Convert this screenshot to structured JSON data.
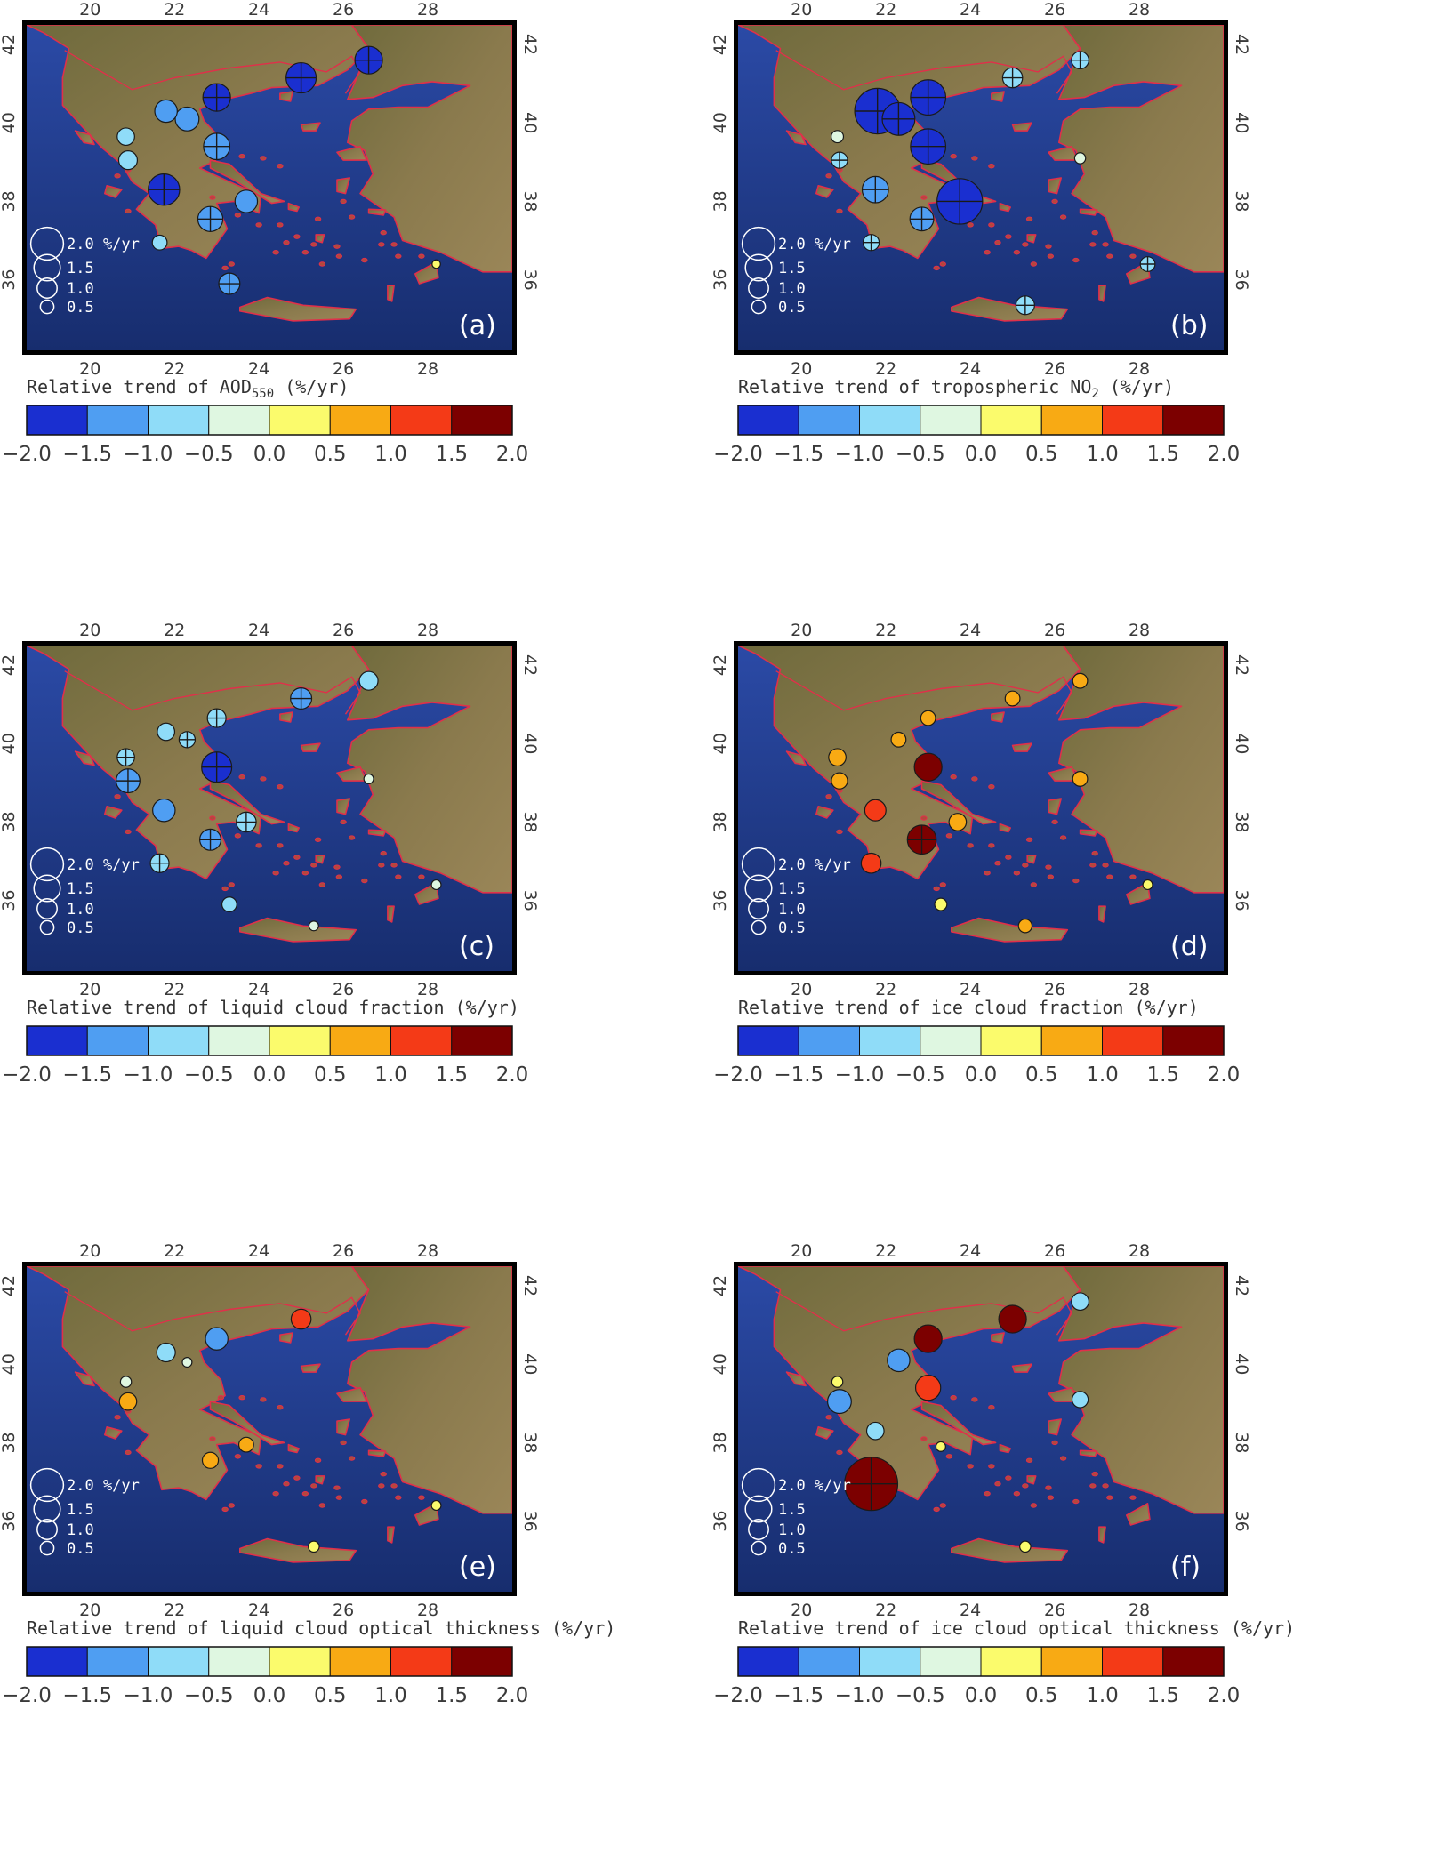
{
  "colors": {
    "scale": [
      "#1a2fd0",
      "#4f9ef2",
      "#8fdcf8",
      "#dff7e1",
      "#fbfb6c",
      "#f8aa14",
      "#f43a17",
      "#7c0000"
    ],
    "sea": "#1f3b86",
    "border": "#e0304a"
  },
  "shared": {
    "lon_ticks": [
      "20",
      "22",
      "24",
      "26",
      "28"
    ],
    "lat_ticks": [
      "36",
      "38",
      "40",
      "42"
    ],
    "colorbar_ticks": [
      "−2.0",
      "−1.5",
      "−1.0",
      "−0.5",
      "0.0",
      "0.5",
      "1.0",
      "1.5",
      "2.0"
    ],
    "colorbar_bins": [
      -2.0,
      -1.5,
      -1.0,
      -0.5,
      0.0,
      0.5,
      1.0,
      1.5,
      2.0
    ],
    "legend_entries": [
      "2.0 %/yr",
      "1.5",
      "1.0",
      "0.5"
    ],
    "legend_values": [
      2.0,
      1.5,
      1.0,
      0.5
    ],
    "lon_range": [
      18.5,
      30
    ],
    "lat_range": [
      34.2,
      42.5
    ]
  },
  "chart_data": [
    {
      "type": "map",
      "panel_label": "(a)",
      "caption": "Relative trend of AOD",
      "caption_sub": "550",
      "caption_tail": " (%/yr)",
      "sites": [
        {
          "lon": 25.0,
          "lat": 41.15,
          "trend": -1.8,
          "significant": true
        },
        {
          "lon": 26.6,
          "lat": 41.6,
          "trend": -1.6,
          "significant": true
        },
        {
          "lon": 23.0,
          "lat": 40.65,
          "trend": -1.6,
          "significant": true
        },
        {
          "lon": 21.8,
          "lat": 40.3,
          "trend": -1.2,
          "significant": false
        },
        {
          "lon": 22.3,
          "lat": 40.1,
          "trend": -1.3,
          "significant": false
        },
        {
          "lon": 20.85,
          "lat": 39.65,
          "trend": -0.8,
          "significant": false
        },
        {
          "lon": 20.9,
          "lat": 39.05,
          "trend": -0.9,
          "significant": false
        },
        {
          "lon": 23.0,
          "lat": 39.4,
          "trend": -1.5,
          "significant": true
        },
        {
          "lon": 21.75,
          "lat": 38.3,
          "trend": -1.9,
          "significant": true
        },
        {
          "lon": 23.7,
          "lat": 38.0,
          "trend": -1.2,
          "significant": false
        },
        {
          "lon": 22.85,
          "lat": 37.55,
          "trend": -1.4,
          "significant": true
        },
        {
          "lon": 21.65,
          "lat": 36.95,
          "trend": -0.6,
          "significant": false
        },
        {
          "lon": 23.3,
          "lat": 35.9,
          "trend": -1.1,
          "significant": true
        },
        {
          "lon": 28.2,
          "lat": 36.4,
          "trend": 0.1,
          "significant": false
        }
      ]
    },
    {
      "type": "map",
      "panel_label": "(b)",
      "caption": "Relative trend of tropospheric NO",
      "caption_sub": "2",
      "caption_tail": " (%/yr)",
      "sites": [
        {
          "lon": 21.8,
          "lat": 40.3,
          "trend": -3.0,
          "significant": true
        },
        {
          "lon": 22.3,
          "lat": 40.1,
          "trend": -2.0,
          "significant": true
        },
        {
          "lon": 23.0,
          "lat": 40.65,
          "trend": -2.2,
          "significant": true
        },
        {
          "lon": 23.0,
          "lat": 39.4,
          "trend": -2.2,
          "significant": true
        },
        {
          "lon": 23.75,
          "lat": 38.0,
          "trend": -3.0,
          "significant": true
        },
        {
          "lon": 21.75,
          "lat": 38.3,
          "trend": -1.5,
          "significant": true
        },
        {
          "lon": 22.85,
          "lat": 37.55,
          "trend": -1.3,
          "significant": true
        },
        {
          "lon": 25.0,
          "lat": 41.15,
          "trend": -1.0,
          "significant": true
        },
        {
          "lon": 26.6,
          "lat": 41.6,
          "trend": -0.8,
          "significant": true
        },
        {
          "lon": 20.85,
          "lat": 39.65,
          "trend": -0.4,
          "significant": false
        },
        {
          "lon": 20.9,
          "lat": 39.05,
          "trend": -0.7,
          "significant": true
        },
        {
          "lon": 21.65,
          "lat": 36.95,
          "trend": -0.7,
          "significant": true
        },
        {
          "lon": 25.3,
          "lat": 35.35,
          "trend": -0.9,
          "significant": true
        },
        {
          "lon": 28.2,
          "lat": 36.4,
          "trend": -0.6,
          "significant": true
        },
        {
          "lon": 26.6,
          "lat": 39.1,
          "trend": -0.3,
          "significant": false
        }
      ]
    },
    {
      "type": "map",
      "panel_label": "(c)",
      "caption": "Relative trend of liquid cloud fraction (%/yr)",
      "caption_sub": "",
      "caption_tail": "",
      "sites": [
        {
          "lon": 26.6,
          "lat": 41.6,
          "trend": -0.9,
          "significant": false
        },
        {
          "lon": 25.0,
          "lat": 41.15,
          "trend": -1.1,
          "significant": true
        },
        {
          "lon": 23.0,
          "lat": 40.65,
          "trend": -0.9,
          "significant": true
        },
        {
          "lon": 21.8,
          "lat": 40.3,
          "trend": -0.8,
          "significant": false
        },
        {
          "lon": 22.3,
          "lat": 40.1,
          "trend": -0.7,
          "significant": true
        },
        {
          "lon": 20.85,
          "lat": 39.65,
          "trend": -0.8,
          "significant": true
        },
        {
          "lon": 20.9,
          "lat": 39.05,
          "trend": -1.3,
          "significant": true
        },
        {
          "lon": 23.0,
          "lat": 39.4,
          "trend": -1.8,
          "significant": true
        },
        {
          "lon": 21.75,
          "lat": 38.3,
          "trend": -1.2,
          "significant": false
        },
        {
          "lon": 23.7,
          "lat": 38.0,
          "trend": -1.0,
          "significant": true
        },
        {
          "lon": 22.85,
          "lat": 37.55,
          "trend": -1.1,
          "significant": true
        },
        {
          "lon": 21.65,
          "lat": 36.95,
          "trend": -0.9,
          "significant": true
        },
        {
          "lon": 23.3,
          "lat": 35.9,
          "trend": -0.6,
          "significant": false
        },
        {
          "lon": 26.6,
          "lat": 39.1,
          "trend": -0.2,
          "significant": false
        },
        {
          "lon": 28.2,
          "lat": 36.4,
          "trend": -0.2,
          "significant": false
        },
        {
          "lon": 25.3,
          "lat": 35.35,
          "trend": -0.2,
          "significant": false
        }
      ]
    },
    {
      "type": "map",
      "panel_label": "(d)",
      "caption": "Relative trend of ice cloud fraction (%/yr)",
      "caption_sub": "",
      "caption_tail": "",
      "sites": [
        {
          "lon": 26.6,
          "lat": 41.6,
          "trend": 0.6,
          "significant": false
        },
        {
          "lon": 25.0,
          "lat": 41.15,
          "trend": 0.6,
          "significant": false
        },
        {
          "lon": 23.0,
          "lat": 40.65,
          "trend": 0.6,
          "significant": false
        },
        {
          "lon": 22.3,
          "lat": 40.1,
          "trend": 0.6,
          "significant": false
        },
        {
          "lon": 20.85,
          "lat": 39.65,
          "trend": 0.8,
          "significant": false
        },
        {
          "lon": 23.0,
          "lat": 39.4,
          "trend": 1.6,
          "significant": false
        },
        {
          "lon": 20.9,
          "lat": 39.05,
          "trend": 0.7,
          "significant": false
        },
        {
          "lon": 26.6,
          "lat": 39.1,
          "trend": 0.6,
          "significant": false
        },
        {
          "lon": 21.75,
          "lat": 38.3,
          "trend": 1.1,
          "significant": false
        },
        {
          "lon": 23.7,
          "lat": 38.0,
          "trend": 0.8,
          "significant": false
        },
        {
          "lon": 22.85,
          "lat": 37.55,
          "trend": 1.7,
          "significant": true
        },
        {
          "lon": 21.65,
          "lat": 36.95,
          "trend": 1.0,
          "significant": false
        },
        {
          "lon": 23.3,
          "lat": 35.9,
          "trend": 0.4,
          "significant": false
        },
        {
          "lon": 25.3,
          "lat": 35.35,
          "trend": 0.5,
          "significant": false
        },
        {
          "lon": 28.2,
          "lat": 36.4,
          "trend": 0.2,
          "significant": false
        }
      ]
    },
    {
      "type": "map",
      "panel_label": "(e)",
      "caption": "Relative trend of liquid cloud optical thickness (%/yr)",
      "caption_sub": "",
      "caption_tail": "",
      "sites": [
        {
          "lon": 25.0,
          "lat": 41.15,
          "trend": 1.0,
          "significant": false
        },
        {
          "lon": 23.0,
          "lat": 40.65,
          "trend": -1.2,
          "significant": false
        },
        {
          "lon": 21.8,
          "lat": 40.3,
          "trend": -0.9,
          "significant": false
        },
        {
          "lon": 22.3,
          "lat": 40.05,
          "trend": -0.2,
          "significant": false
        },
        {
          "lon": 20.85,
          "lat": 39.55,
          "trend": -0.3,
          "significant": false
        },
        {
          "lon": 20.9,
          "lat": 39.05,
          "trend": 0.8,
          "significant": false
        },
        {
          "lon": 23.7,
          "lat": 37.95,
          "trend": 0.6,
          "significant": false
        },
        {
          "lon": 22.85,
          "lat": 37.55,
          "trend": 0.7,
          "significant": false
        },
        {
          "lon": 25.3,
          "lat": 35.35,
          "trend": 0.3,
          "significant": false
        },
        {
          "lon": 28.2,
          "lat": 36.4,
          "trend": 0.2,
          "significant": false
        }
      ]
    },
    {
      "type": "map",
      "panel_label": "(f)",
      "caption": "Relative trend of ice cloud optical thickness (%/yr)",
      "caption_sub": "",
      "caption_tail": "",
      "sites": [
        {
          "lon": 25.0,
          "lat": 41.15,
          "trend": 1.6,
          "significant": false
        },
        {
          "lon": 26.6,
          "lat": 41.6,
          "trend": -0.8,
          "significant": false
        },
        {
          "lon": 23.0,
          "lat": 40.65,
          "trend": 1.6,
          "significant": false
        },
        {
          "lon": 22.3,
          "lat": 40.1,
          "trend": -1.2,
          "significant": false
        },
        {
          "lon": 20.85,
          "lat": 39.55,
          "trend": 0.3,
          "significant": false
        },
        {
          "lon": 20.9,
          "lat": 39.05,
          "trend": -1.3,
          "significant": false
        },
        {
          "lon": 23.0,
          "lat": 39.4,
          "trend": 1.4,
          "significant": false
        },
        {
          "lon": 26.6,
          "lat": 39.1,
          "trend": -0.7,
          "significant": false
        },
        {
          "lon": 21.75,
          "lat": 38.3,
          "trend": -0.8,
          "significant": false
        },
        {
          "lon": 21.65,
          "lat": 36.95,
          "trend": 3.6,
          "significant": true
        },
        {
          "lon": 23.3,
          "lat": 37.9,
          "trend": 0.2,
          "significant": false
        },
        {
          "lon": 25.3,
          "lat": 35.35,
          "trend": 0.3,
          "significant": false
        }
      ]
    }
  ]
}
